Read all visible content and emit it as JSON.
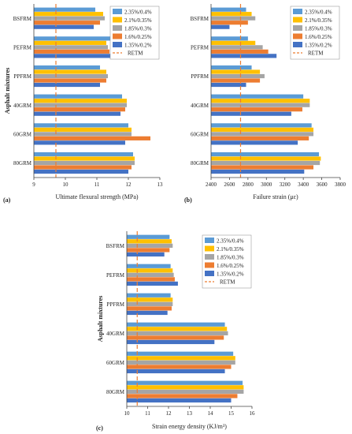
{
  "figure": {
    "series_colors": [
      "#5B9BD5",
      "#FFC000",
      "#A5A5A5",
      "#ED7D31",
      "#4472C4"
    ],
    "reference_color": "#ED7D31"
  },
  "chart_data": [
    {
      "type": "bar",
      "orientation": "horizontal",
      "panel_label": "(a)",
      "title": "",
      "xlabel": "Ultimate flexural strength (MPa)",
      "ylabel": "Asphalt mixtures",
      "xlim": [
        9,
        13
      ],
      "xticks": [
        9,
        10,
        11,
        12,
        13
      ],
      "categories": [
        "BSFRM",
        "PEFRM",
        "PPFRM",
        "40GRM",
        "60GRM",
        "80GRM"
      ],
      "series": [
        {
          "name": "2.35%/0.4%",
          "values": [
            10.95,
            11.45,
            11.1,
            11.8,
            12.0,
            12.15
          ]
        },
        {
          "name": "2.1%/0.35%",
          "values": [
            11.2,
            11.3,
            11.3,
            11.95,
            12.1,
            12.2
          ]
        },
        {
          "name": "1.85%/0.3%",
          "values": [
            11.25,
            11.35,
            11.35,
            11.95,
            12.1,
            12.2
          ]
        },
        {
          "name": "1.6%/0.25%",
          "values": [
            11.1,
            11.4,
            11.3,
            11.9,
            12.7,
            12.1
          ]
        },
        {
          "name": "1.35%/0.2%",
          "values": [
            10.9,
            11.5,
            11.1,
            11.75,
            11.9,
            12.0
          ]
        }
      ],
      "reference": {
        "name": "RETM",
        "value": 9.7
      },
      "grid": false,
      "legend_position": "top-right"
    },
    {
      "type": "bar",
      "orientation": "horizontal",
      "panel_label": "(b)",
      "title": "",
      "xlabel": "Failure strain (με)",
      "ylabel": "",
      "xlim": [
        2400,
        3800
      ],
      "xticks": [
        2400,
        2600,
        2800,
        3000,
        3200,
        3400,
        3600,
        3800
      ],
      "categories": [
        "BSFRM",
        "PEFRM",
        "PPFRM",
        "40GRM",
        "60GRM",
        "80GRM"
      ],
      "series": [
        {
          "name": "2.35%/0.4%",
          "values": [
            2780,
            2800,
            2840,
            3400,
            3490,
            3570
          ]
        },
        {
          "name": "2.1%/0.35%",
          "values": [
            2840,
            2880,
            2930,
            3470,
            3510,
            3590
          ]
        },
        {
          "name": "1.85%/0.3%",
          "values": [
            2880,
            2960,
            2980,
            3470,
            3510,
            3580
          ]
        },
        {
          "name": "1.6%/0.25%",
          "values": [
            2800,
            3020,
            2930,
            3390,
            3460,
            3510
          ]
        },
        {
          "name": "1.35%/0.2%",
          "values": [
            2600,
            3110,
            2780,
            3270,
            3340,
            3410
          ]
        }
      ],
      "reference": {
        "name": "RETM",
        "value": 2720
      },
      "grid": false,
      "legend_position": "top-right"
    },
    {
      "type": "bar",
      "orientation": "horizontal",
      "panel_label": "(c)",
      "title": "",
      "xlabel": "Strain energy density (KJ/m³)",
      "ylabel": "Asphalt mixtures",
      "xlim": [
        10,
        16
      ],
      "xticks": [
        10,
        11,
        12,
        13,
        14,
        15,
        16
      ],
      "categories": [
        "BSFRM",
        "PEFRM",
        "PPFRM",
        "40GRM",
        "60GRM",
        "80GRM"
      ],
      "series": [
        {
          "name": "2.35%/0.4%",
          "values": [
            12.05,
            12.1,
            12.1,
            14.7,
            15.1,
            15.55
          ]
        },
        {
          "name": "2.1%/0.35%",
          "values": [
            12.15,
            12.2,
            12.2,
            14.8,
            15.2,
            15.6
          ]
        },
        {
          "name": "1.85%/0.3%",
          "values": [
            12.2,
            12.25,
            12.2,
            14.85,
            15.2,
            15.6
          ]
        },
        {
          "name": "1.6%/0.25%",
          "values": [
            12.05,
            12.3,
            12.15,
            14.65,
            15.0,
            15.3
          ]
        },
        {
          "name": "1.35%/0.2%",
          "values": [
            11.8,
            12.45,
            11.95,
            14.2,
            14.7,
            15.0
          ]
        }
      ],
      "reference": {
        "name": "RETM",
        "value": 10.5
      },
      "grid": false,
      "legend_position": "top-right"
    }
  ]
}
